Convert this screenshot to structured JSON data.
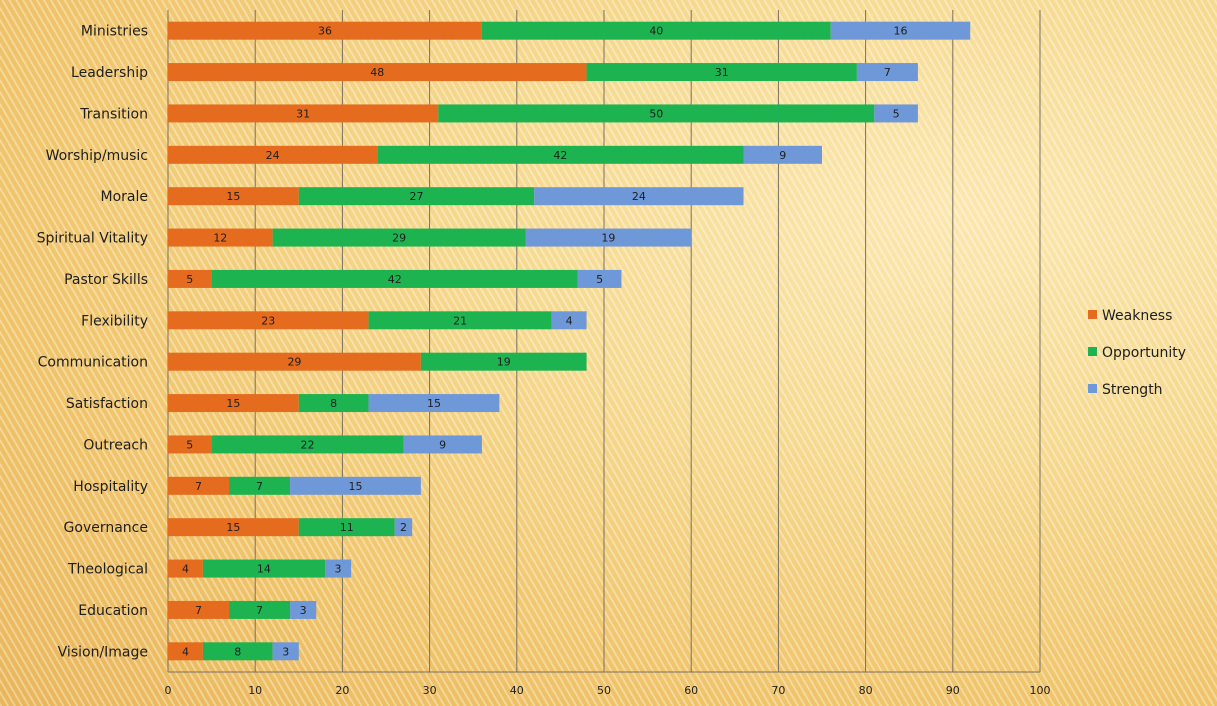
{
  "chart_data": {
    "type": "bar",
    "orientation": "horizontal",
    "stacked": true,
    "categories": [
      "Ministries",
      "Leadership",
      "Transition",
      "Worship/music",
      "Morale",
      "Spiritual Vitality",
      "Pastor Skills",
      "Flexibility",
      "Communication",
      "Satisfaction",
      "Outreach",
      "Hospitality",
      "Governance",
      "Theological",
      "Education",
      "Vision/Image"
    ],
    "series": [
      {
        "name": "Weakness",
        "color": "#e56b1f",
        "values": [
          36,
          48,
          31,
          24,
          15,
          12,
          5,
          23,
          29,
          15,
          5,
          7,
          15,
          4,
          7,
          4
        ]
      },
      {
        "name": "Opportunity",
        "color": "#1db350",
        "values": [
          40,
          31,
          50,
          42,
          27,
          29,
          42,
          21,
          19,
          8,
          22,
          7,
          11,
          14,
          7,
          8
        ]
      },
      {
        "name": "Strength",
        "color": "#6f98d8",
        "values": [
          16,
          7,
          5,
          9,
          24,
          19,
          5,
          4,
          null,
          15,
          9,
          15,
          2,
          3,
          3,
          3
        ]
      }
    ],
    "xlim": [
      0,
      100
    ],
    "xticks": [
      0,
      10,
      20,
      30,
      40,
      50,
      60,
      70,
      80,
      90,
      100
    ],
    "grid": true,
    "legend_position": "right"
  }
}
